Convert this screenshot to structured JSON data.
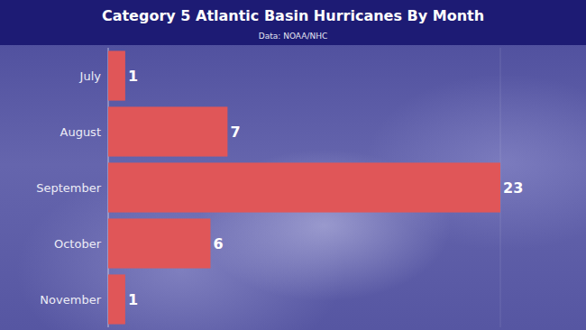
{
  "chart_data": {
    "type": "bar",
    "title": "Category 5 Atlantic Basin Hurricanes By Month",
    "subtitle": "Data: NOAA/NHC",
    "categories": [
      "July",
      "August",
      "September",
      "October",
      "November"
    ],
    "values": [
      1,
      7,
      23,
      6,
      1
    ],
    "color": "#e05658",
    "xlim": [
      0,
      23
    ],
    "orientation": "horizontal",
    "data_labels": true,
    "tick_labels": "y"
  }
}
